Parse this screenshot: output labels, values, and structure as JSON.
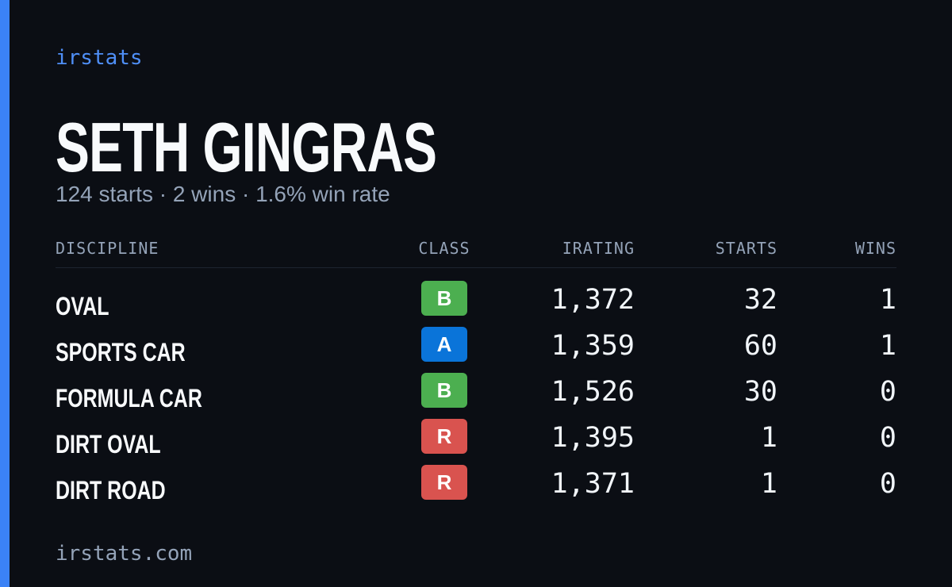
{
  "brand": "irstats",
  "title": "SETH GINGRAS",
  "subtitle": "124 starts · 2 wins · 1.6% win rate",
  "table": {
    "headers": [
      "DISCIPLINE",
      "CLASS",
      "IRATING",
      "STARTS",
      "WINS"
    ],
    "rows": [
      [
        "OVAL",
        "B",
        "1,372",
        "32",
        "1"
      ],
      [
        "SPORTS CAR",
        "A",
        "1,359",
        "60",
        "1"
      ],
      [
        "FORMULA CAR",
        "B",
        "1,526",
        "30",
        "0"
      ],
      [
        "DIRT OVAL",
        "R",
        "1,395",
        "1",
        "0"
      ],
      [
        "DIRT ROAD",
        "R",
        "1,371",
        "1",
        "0"
      ]
    ],
    "class_colors": {
      "A": "#0a74d9",
      "B": "#4caf50",
      "R": "#d9534f"
    }
  },
  "footer": "irstats.com"
}
